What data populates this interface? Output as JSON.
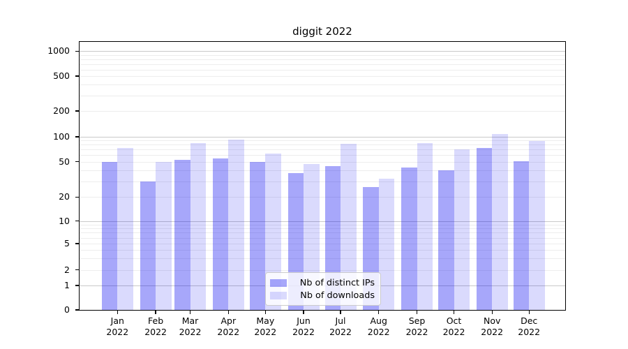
{
  "chart_data": {
    "type": "bar",
    "title": "diggit 2022",
    "year_label": "2022",
    "categories": [
      "Jan",
      "Feb",
      "Mar",
      "Apr",
      "May",
      "Jun",
      "Jul",
      "Aug",
      "Sep",
      "Oct",
      "Nov",
      "Dec"
    ],
    "series": [
      {
        "name": "Nb of distinct IPs",
        "color": "rgba(0,0,240,0.345)",
        "values": [
          50,
          30,
          53,
          55,
          50,
          37,
          45,
          26,
          43,
          40,
          74,
          51
        ]
      },
      {
        "name": "Nb of downloads",
        "color": "rgba(0,0,240,0.145)",
        "values": [
          74,
          50,
          84,
          93,
          63,
          47,
          83,
          32,
          84,
          70,
          108,
          89
        ]
      }
    ],
    "yticks": [
      0,
      1,
      2,
      5,
      10,
      20,
      50,
      100,
      200,
      500,
      1000
    ],
    "y_major_gridlines": [
      1,
      10,
      100,
      1000
    ],
    "yscale": "symlog",
    "ylim": [
      0,
      1300
    ],
    "grid": "on",
    "legend_position": "lower center",
    "colors": {
      "major_grid": "#c9c9c9",
      "minor_grid": "#ededed",
      "spine": "#000000",
      "background": "#ffffff"
    }
  }
}
